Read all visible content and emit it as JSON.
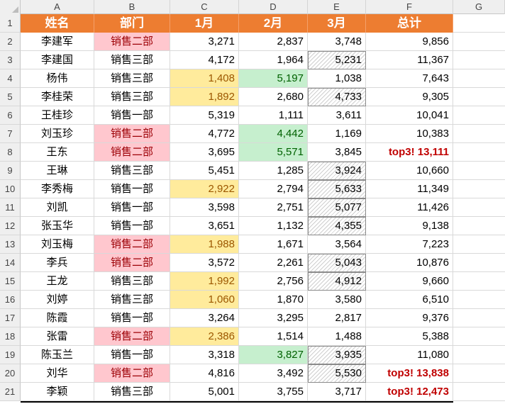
{
  "sheet": {
    "columns": [
      "A",
      "B",
      "C",
      "D",
      "E",
      "F",
      "G"
    ],
    "row_numbers": [
      "1",
      "2",
      "3",
      "4",
      "5",
      "6",
      "7",
      "8",
      "9",
      "10",
      "11",
      "12",
      "13",
      "14",
      "15",
      "16",
      "17",
      "18",
      "19",
      "20",
      "21"
    ],
    "headers": [
      "姓名",
      "部门",
      "1月",
      "2月",
      "3月",
      "总计"
    ],
    "rows": [
      {
        "name": "李建军",
        "dept": "销售二部",
        "m1": "3,271",
        "m2": "2,837",
        "m3": "3,748",
        "total": "9,856",
        "dept_fmt": "pink",
        "m1_fmt": "",
        "m2_fmt": "",
        "m3_fmt": "",
        "total_fmt": ""
      },
      {
        "name": "李建国",
        "dept": "销售三部",
        "m1": "4,172",
        "m2": "1,964",
        "m3": "5,231",
        "total": "11,367",
        "dept_fmt": "",
        "m1_fmt": "",
        "m2_fmt": "",
        "m3_fmt": "hatch",
        "total_fmt": ""
      },
      {
        "name": "杨伟",
        "dept": "销售三部",
        "m1": "1,408",
        "m2": "5,197",
        "m3": "1,038",
        "total": "7,643",
        "dept_fmt": "",
        "m1_fmt": "yellow",
        "m2_fmt": "green",
        "m3_fmt": "",
        "total_fmt": ""
      },
      {
        "name": "李桂荣",
        "dept": "销售三部",
        "m1": "1,892",
        "m2": "2,680",
        "m3": "4,733",
        "total": "9,305",
        "dept_fmt": "",
        "m1_fmt": "yellow",
        "m2_fmt": "",
        "m3_fmt": "hatch",
        "total_fmt": ""
      },
      {
        "name": "王桂珍",
        "dept": "销售一部",
        "m1": "5,319",
        "m2": "1,111",
        "m3": "3,611",
        "total": "10,041",
        "dept_fmt": "",
        "m1_fmt": "",
        "m2_fmt": "",
        "m3_fmt": "",
        "total_fmt": ""
      },
      {
        "name": "刘玉珍",
        "dept": "销售二部",
        "m1": "4,772",
        "m2": "4,442",
        "m3": "1,169",
        "total": "10,383",
        "dept_fmt": "pink",
        "m1_fmt": "",
        "m2_fmt": "green",
        "m3_fmt": "",
        "total_fmt": ""
      },
      {
        "name": "王东",
        "dept": "销售二部",
        "m1": "3,695",
        "m2": "5,571",
        "m3": "3,845",
        "total": "top3! 13,111",
        "dept_fmt": "pink",
        "m1_fmt": "",
        "m2_fmt": "green",
        "m3_fmt": "",
        "total_fmt": "top3"
      },
      {
        "name": "王琳",
        "dept": "销售三部",
        "m1": "5,451",
        "m2": "1,285",
        "m3": "3,924",
        "total": "10,660",
        "dept_fmt": "",
        "m1_fmt": "",
        "m2_fmt": "",
        "m3_fmt": "hatch",
        "total_fmt": ""
      },
      {
        "name": "李秀梅",
        "dept": "销售一部",
        "m1": "2,922",
        "m2": "2,794",
        "m3": "5,633",
        "total": "11,349",
        "dept_fmt": "",
        "m1_fmt": "yellow",
        "m2_fmt": "",
        "m3_fmt": "hatch",
        "total_fmt": ""
      },
      {
        "name": "刘凯",
        "dept": "销售一部",
        "m1": "3,598",
        "m2": "2,751",
        "m3": "5,077",
        "total": "11,426",
        "dept_fmt": "",
        "m1_fmt": "",
        "m2_fmt": "",
        "m3_fmt": "hatch",
        "total_fmt": ""
      },
      {
        "name": "张玉华",
        "dept": "销售一部",
        "m1": "3,651",
        "m2": "1,132",
        "m3": "4,355",
        "total": "9,138",
        "dept_fmt": "",
        "m1_fmt": "",
        "m2_fmt": "",
        "m3_fmt": "hatch",
        "total_fmt": ""
      },
      {
        "name": "刘玉梅",
        "dept": "销售二部",
        "m1": "1,988",
        "m2": "1,671",
        "m3": "3,564",
        "total": "7,223",
        "dept_fmt": "pink",
        "m1_fmt": "yellow",
        "m2_fmt": "",
        "m3_fmt": "",
        "total_fmt": ""
      },
      {
        "name": "李兵",
        "dept": "销售二部",
        "m1": "3,572",
        "m2": "2,261",
        "m3": "5,043",
        "total": "10,876",
        "dept_fmt": "pink",
        "m1_fmt": "",
        "m2_fmt": "",
        "m3_fmt": "hatch",
        "total_fmt": ""
      },
      {
        "name": "王龙",
        "dept": "销售三部",
        "m1": "1,992",
        "m2": "2,756",
        "m3": "4,912",
        "total": "9,660",
        "dept_fmt": "",
        "m1_fmt": "yellow",
        "m2_fmt": "",
        "m3_fmt": "hatch",
        "total_fmt": ""
      },
      {
        "name": "刘婷",
        "dept": "销售三部",
        "m1": "1,060",
        "m2": "1,870",
        "m3": "3,580",
        "total": "6,510",
        "dept_fmt": "",
        "m1_fmt": "yellow",
        "m2_fmt": "",
        "m3_fmt": "",
        "total_fmt": ""
      },
      {
        "name": "陈霞",
        "dept": "销售一部",
        "m1": "3,264",
        "m2": "3,295",
        "m3": "2,817",
        "total": "9,376",
        "dept_fmt": "",
        "m1_fmt": "",
        "m2_fmt": "",
        "m3_fmt": "",
        "total_fmt": ""
      },
      {
        "name": "张雷",
        "dept": "销售二部",
        "m1": "2,386",
        "m2": "1,514",
        "m3": "1,488",
        "total": "5,388",
        "dept_fmt": "pink",
        "m1_fmt": "yellow",
        "m2_fmt": "",
        "m3_fmt": "",
        "total_fmt": ""
      },
      {
        "name": "陈玉兰",
        "dept": "销售一部",
        "m1": "3,318",
        "m2": "3,827",
        "m3": "3,935",
        "total": "11,080",
        "dept_fmt": "",
        "m1_fmt": "",
        "m2_fmt": "green",
        "m3_fmt": "hatch",
        "total_fmt": ""
      },
      {
        "name": "刘华",
        "dept": "销售二部",
        "m1": "4,816",
        "m2": "3,492",
        "m3": "5,530",
        "total": "top3! 13,838",
        "dept_fmt": "pink",
        "m1_fmt": "",
        "m2_fmt": "",
        "m3_fmt": "hatch",
        "total_fmt": "top3"
      },
      {
        "name": "李颖",
        "dept": "销售三部",
        "m1": "5,001",
        "m2": "3,755",
        "m3": "3,717",
        "total": "top3! 12,473",
        "dept_fmt": "",
        "m1_fmt": "",
        "m2_fmt": "",
        "m3_fmt": "",
        "total_fmt": "top3"
      }
    ]
  },
  "colors": {
    "header_fill": "#ed7d31",
    "pink_fill": "#ffc7ce",
    "yellow_fill": "#ffeb9c",
    "green_fill": "#c6efce",
    "top3_text": "#c00000"
  }
}
